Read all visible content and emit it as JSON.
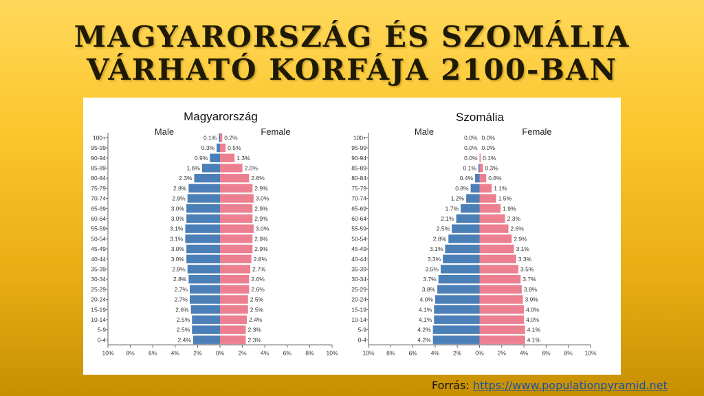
{
  "slide": {
    "title_line1": "Magyarország és Szomália",
    "title_line2": "várható korfája 2100-ban",
    "source_label": "Forrás:",
    "source_link": "https://www.populationpyramid.net"
  },
  "colors": {
    "male": "#4a7fb7",
    "female": "#ec8090",
    "axis": "#666666"
  },
  "chart_data": [
    {
      "type": "bar",
      "orientation": "horizontal-pyramid",
      "title": "Magyarország",
      "categories": [
        "100+",
        "95-99",
        "90-94",
        "85-89",
        "80-84",
        "75-79",
        "70-74",
        "65-69",
        "60-64",
        "55-59",
        "50-54",
        "45-49",
        "40-44",
        "35-39",
        "30-34",
        "25-29",
        "20-24",
        "15-19",
        "10-14",
        "5-9",
        "0-4"
      ],
      "series": [
        {
          "name": "Male",
          "values": [
            0.1,
            0.3,
            0.9,
            1.6,
            2.3,
            2.8,
            2.9,
            3.0,
            3.0,
            3.1,
            3.1,
            3.0,
            3.0,
            2.9,
            2.8,
            2.7,
            2.7,
            2.6,
            2.5,
            2.5,
            2.4
          ]
        },
        {
          "name": "Female",
          "values": [
            0.2,
            0.5,
            1.3,
            2.0,
            2.6,
            2.9,
            3.0,
            2.9,
            2.9,
            3.0,
            2.9,
            2.9,
            2.8,
            2.7,
            2.6,
            2.6,
            2.5,
            2.5,
            2.4,
            2.3,
            2.3
          ]
        }
      ],
      "value_labels": {
        "male": [
          "0.1%",
          "0.3%",
          "0.9%",
          "1.6%",
          "2.3%",
          "2.8%",
          "2.9%",
          "3.0%",
          "3.0%",
          "3.1%",
          "3.1%",
          "3.0%",
          "3.0%",
          "2.9%",
          "2.8%",
          "2.7%",
          "2.7%",
          "2.6%",
          "2.5%",
          "2.5%",
          "2.4%"
        ],
        "female": [
          "0.2%",
          "0.5%",
          "1.3%",
          "2.0%",
          "2.6%",
          "2.9%",
          "3.0%",
          "2.9%",
          "2.9%",
          "3.0%",
          "2.9%",
          "2.9%",
          "2.8%",
          "2.7%",
          "2.6%",
          "2.6%",
          "2.5%",
          "2.5%",
          "2.4%",
          "2.3%",
          "2.3%"
        ]
      },
      "xlim": [
        -10,
        10
      ],
      "xticks": [
        "10%",
        "8%",
        "6%",
        "4%",
        "2%",
        "0%",
        "2%",
        "4%",
        "6%",
        "8%",
        "10%"
      ],
      "legend": {
        "left": "Male",
        "right": "Female"
      }
    },
    {
      "type": "bar",
      "orientation": "horizontal-pyramid",
      "title": "Szomália",
      "categories": [
        "100+",
        "95-99",
        "90-94",
        "85-89",
        "80-84",
        "75-79",
        "70-74",
        "65-69",
        "60-64",
        "55-59",
        "50-54",
        "45-49",
        "40-44",
        "35-39",
        "30-34",
        "25-29",
        "20-24",
        "15-19",
        "10-14",
        "5-9",
        "0-4"
      ],
      "series": [
        {
          "name": "Male",
          "values": [
            0.0,
            0.0,
            0.0,
            0.1,
            0.4,
            0.8,
            1.2,
            1.7,
            2.1,
            2.5,
            2.8,
            3.1,
            3.3,
            3.5,
            3.7,
            3.8,
            4.0,
            4.1,
            4.1,
            4.2,
            4.2
          ]
        },
        {
          "name": "Female",
          "values": [
            0.0,
            0.0,
            0.1,
            0.3,
            0.6,
            1.1,
            1.5,
            1.9,
            2.3,
            2.6,
            2.9,
            3.1,
            3.3,
            3.5,
            3.7,
            3.8,
            3.9,
            4.0,
            4.0,
            4.1,
            4.1
          ]
        }
      ],
      "value_labels": {
        "male": [
          "0.0%",
          "0.0%",
          "0.0%",
          "0.1%",
          "0.4%",
          "0.8%",
          "1.2%",
          "1.7%",
          "2.1%",
          "2.5%",
          "2.8%",
          "3.1%",
          "3.3%",
          "3.5%",
          "3.7%",
          "3.8%",
          "4.0%",
          "4.1%",
          "4.1%",
          "4.2%",
          "4.2%"
        ],
        "female": [
          "0.0%",
          "0.0%",
          "0.1%",
          "0.3%",
          "0.6%",
          "1.1%",
          "1.5%",
          "1.9%",
          "2.3%",
          "2.6%",
          "2.9%",
          "3.1%",
          "3.3%",
          "3.5%",
          "3.7%",
          "3.8%",
          "3.9%",
          "4.0%",
          "4.0%",
          "4.1%",
          "4.1%"
        ]
      },
      "xlim": [
        -10,
        10
      ],
      "xticks": [
        "10%",
        "8%",
        "6%",
        "4%",
        "2%",
        "0%",
        "2%",
        "4%",
        "6%",
        "8%",
        "10%"
      ],
      "legend": {
        "left": "Male",
        "right": "Female"
      }
    }
  ]
}
